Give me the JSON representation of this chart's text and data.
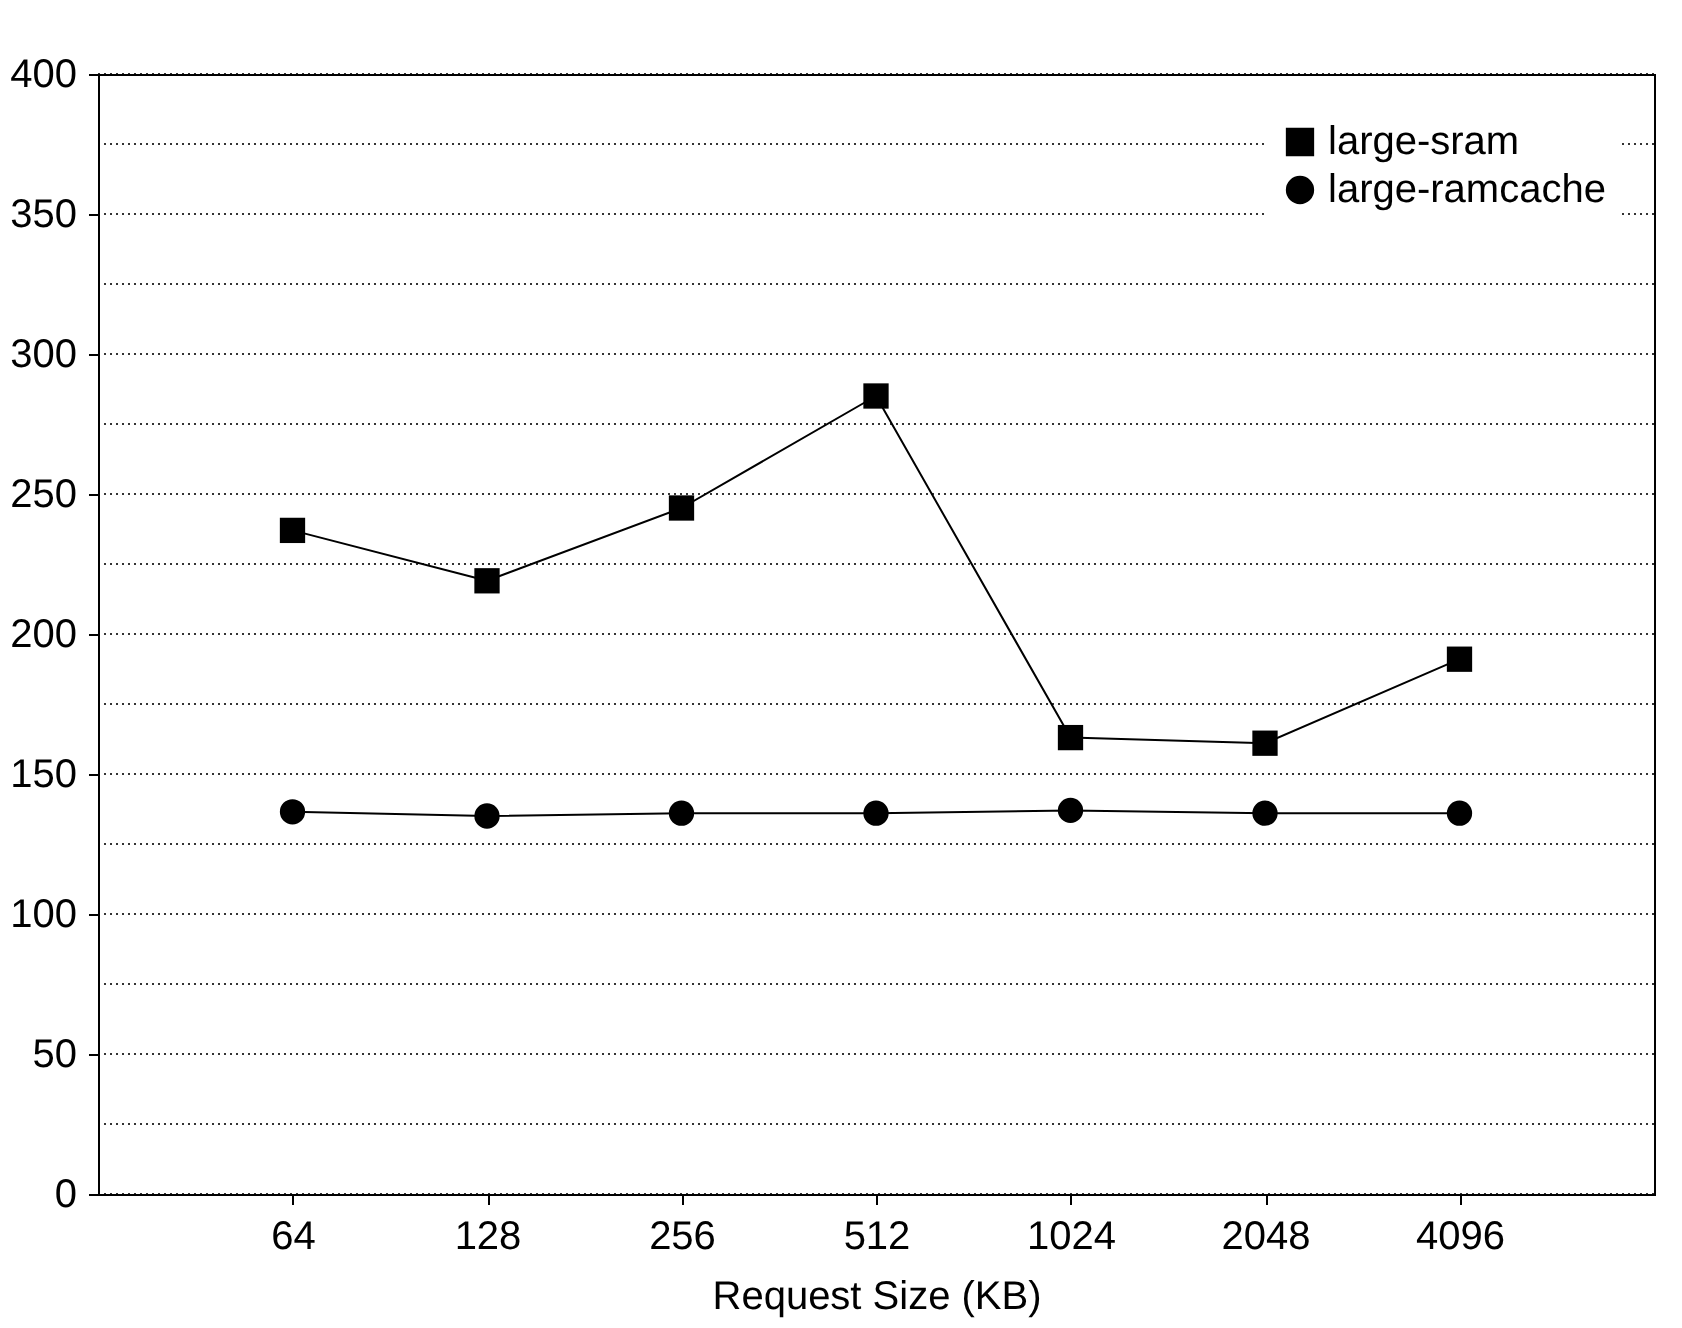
{
  "chart_data": {
    "type": "line",
    "xlabel": "Request Size (KB)",
    "categories": [
      "64",
      "128",
      "256",
      "512",
      "1024",
      "2048",
      "4096"
    ],
    "series": [
      {
        "name": "large-sram",
        "color": "#000000",
        "marker": "square",
        "values": [
          237,
          219,
          245,
          285,
          163,
          161,
          191
        ]
      },
      {
        "name": "large-ramcache",
        "color": "#000000",
        "marker": "circle",
        "values": [
          136.5,
          135,
          136,
          136,
          137,
          136,
          136
        ]
      }
    ],
    "ylim": [
      0,
      400
    ],
    "yticks": [
      0,
      {
        "value": 25,
        "label": null
      },
      50,
      {
        "value": 75,
        "label": null
      },
      100,
      {
        "value": 125,
        "label": null
      },
      150,
      {
        "value": 175,
        "label": null
      },
      200,
      {
        "value": 225,
        "label": null
      },
      250,
      {
        "value": 275,
        "label": null
      },
      300,
      {
        "value": 325,
        "label": null
      },
      350,
      {
        "value": 375,
        "label": null
      },
      400
    ],
    "grid": "y",
    "legend": "top right",
    "line_style": "solid"
  }
}
